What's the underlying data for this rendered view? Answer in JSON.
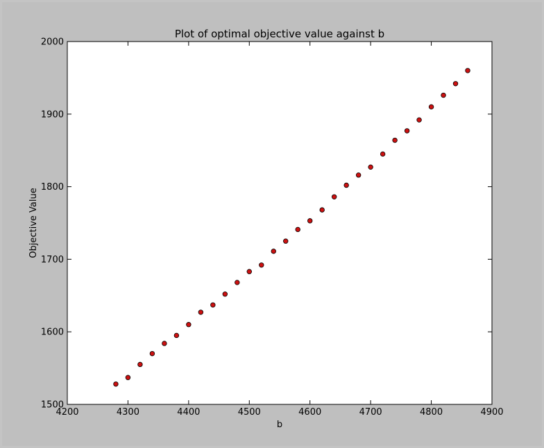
{
  "chart_data": {
    "type": "scatter",
    "title": "Plot of optimal objective value against b",
    "xlabel": "b",
    "ylabel": "Objective Value",
    "xlim": [
      4200,
      4900
    ],
    "ylim": [
      1500,
      2000
    ],
    "xticks": [
      4200,
      4300,
      4400,
      4500,
      4600,
      4700,
      4800,
      4900
    ],
    "yticks": [
      1500,
      1600,
      1700,
      1800,
      1900,
      2000
    ],
    "grid": false,
    "marker_color": "#cc1111",
    "marker_edge": "#000000",
    "series": [
      {
        "x": [
          4280,
          4300,
          4320,
          4340,
          4360,
          4380,
          4400,
          4420,
          4440,
          4460,
          4480,
          4500,
          4520,
          4540,
          4560,
          4580,
          4600,
          4620,
          4640,
          4660,
          4680,
          4700,
          4720,
          4740,
          4760,
          4780,
          4800,
          4820,
          4840,
          4860
        ],
        "y": [
          1528,
          1537,
          1555,
          1570,
          1584,
          1595,
          1610,
          1627,
          1637,
          1652,
          1668,
          1683,
          1692,
          1711,
          1725,
          1741,
          1753,
          1768,
          1786,
          1802,
          1816,
          1827,
          1845,
          1864,
          1877,
          1892,
          1910,
          1926,
          1942,
          1960
        ]
      }
    ]
  }
}
